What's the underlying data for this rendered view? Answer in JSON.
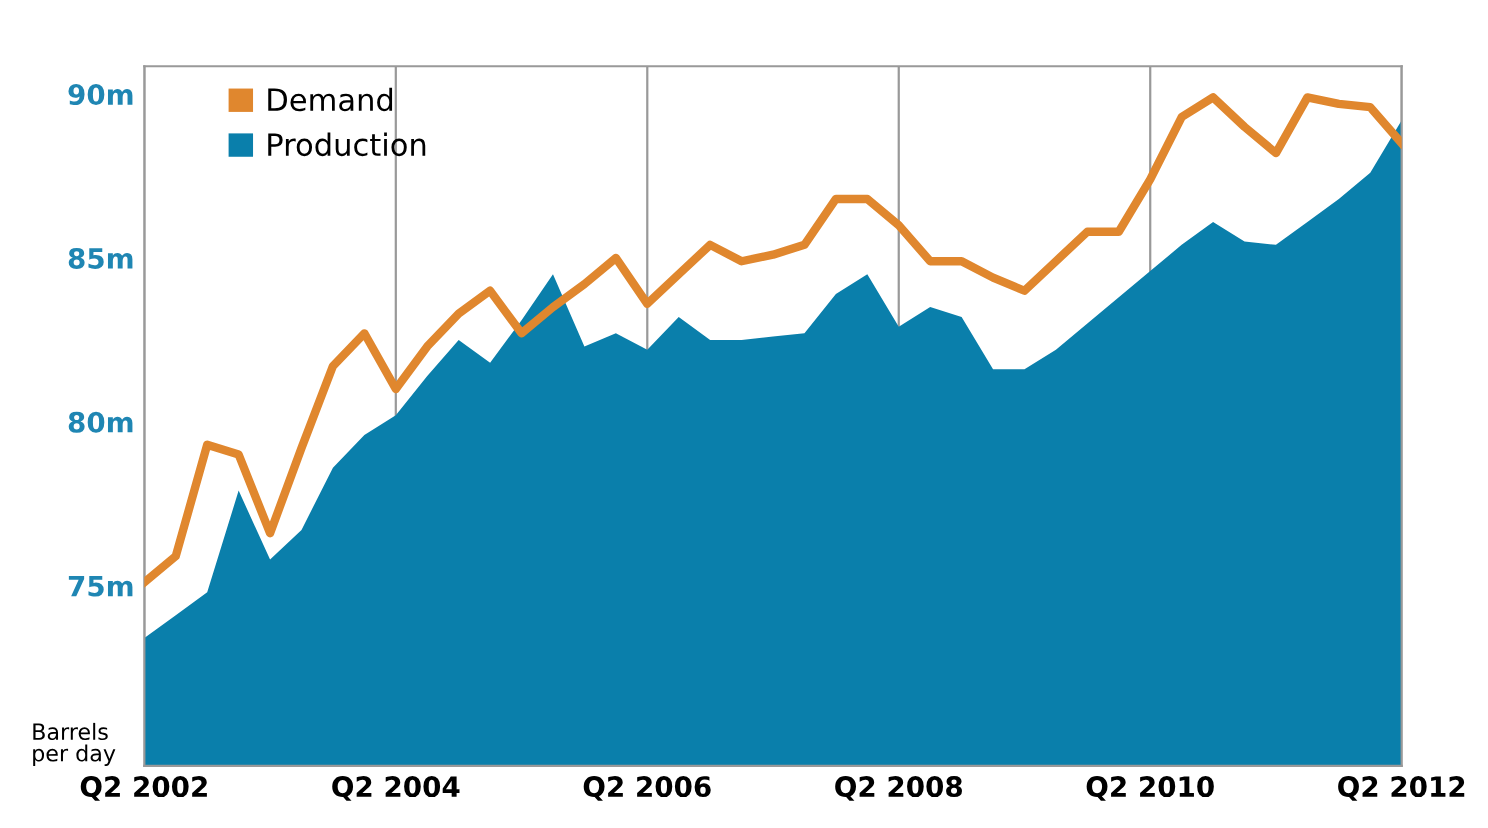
{
  "chart_data": {
    "type": "line",
    "ylabel": "Barrels\nper day",
    "categories": [
      "Q2 2002",
      null,
      null,
      null,
      null,
      null,
      null,
      null,
      "Q2 2004",
      null,
      null,
      null,
      null,
      null,
      null,
      null,
      "Q2 2006",
      null,
      null,
      null,
      null,
      null,
      null,
      null,
      "Q2 2008",
      null,
      null,
      null,
      null,
      null,
      null,
      null,
      "Q2 2010",
      null,
      null,
      null,
      null,
      null,
      null,
      null,
      "Q2 2012"
    ],
    "ylim": [
      69.5,
      90.85
    ],
    "yticks": [
      {
        "value": 75,
        "label": "75m"
      },
      {
        "value": 80,
        "label": "80m"
      },
      {
        "value": 85,
        "label": "85m"
      },
      {
        "value": 90,
        "label": "90m"
      }
    ],
    "grid": "x",
    "legend": "top left",
    "series": [
      {
        "name": "Production",
        "type": "area",
        "color": "#0a7fab",
        "values": [
          73.4,
          74.1,
          74.8,
          77.9,
          75.8,
          76.7,
          78.6,
          79.6,
          80.2,
          81.4,
          82.5,
          81.8,
          83.1,
          84.5,
          82.3,
          82.7,
          82.2,
          83.2,
          82.5,
          82.5,
          82.6,
          82.7,
          83.9,
          84.5,
          82.9,
          83.5,
          83.2,
          81.6,
          81.6,
          82.2,
          83.0,
          83.8,
          84.6,
          85.4,
          86.1,
          85.5,
          85.4,
          86.1,
          86.8,
          87.6,
          89.2
        ]
      },
      {
        "name": "Demand",
        "color": "#e0872e",
        "values": [
          75.1,
          75.9,
          79.3,
          79.0,
          76.6,
          79.2,
          81.7,
          82.7,
          81.0,
          82.3,
          83.3,
          84.0,
          82.7,
          83.5,
          84.2,
          85.0,
          83.6,
          84.5,
          85.4,
          84.9,
          85.1,
          85.4,
          86.8,
          86.8,
          86.0,
          84.9,
          84.9,
          84.4,
          84.0,
          84.9,
          85.8,
          85.8,
          87.4,
          89.3,
          89.9,
          89.0,
          88.2,
          89.9,
          89.7,
          89.6,
          88.5
        ]
      }
    ]
  }
}
